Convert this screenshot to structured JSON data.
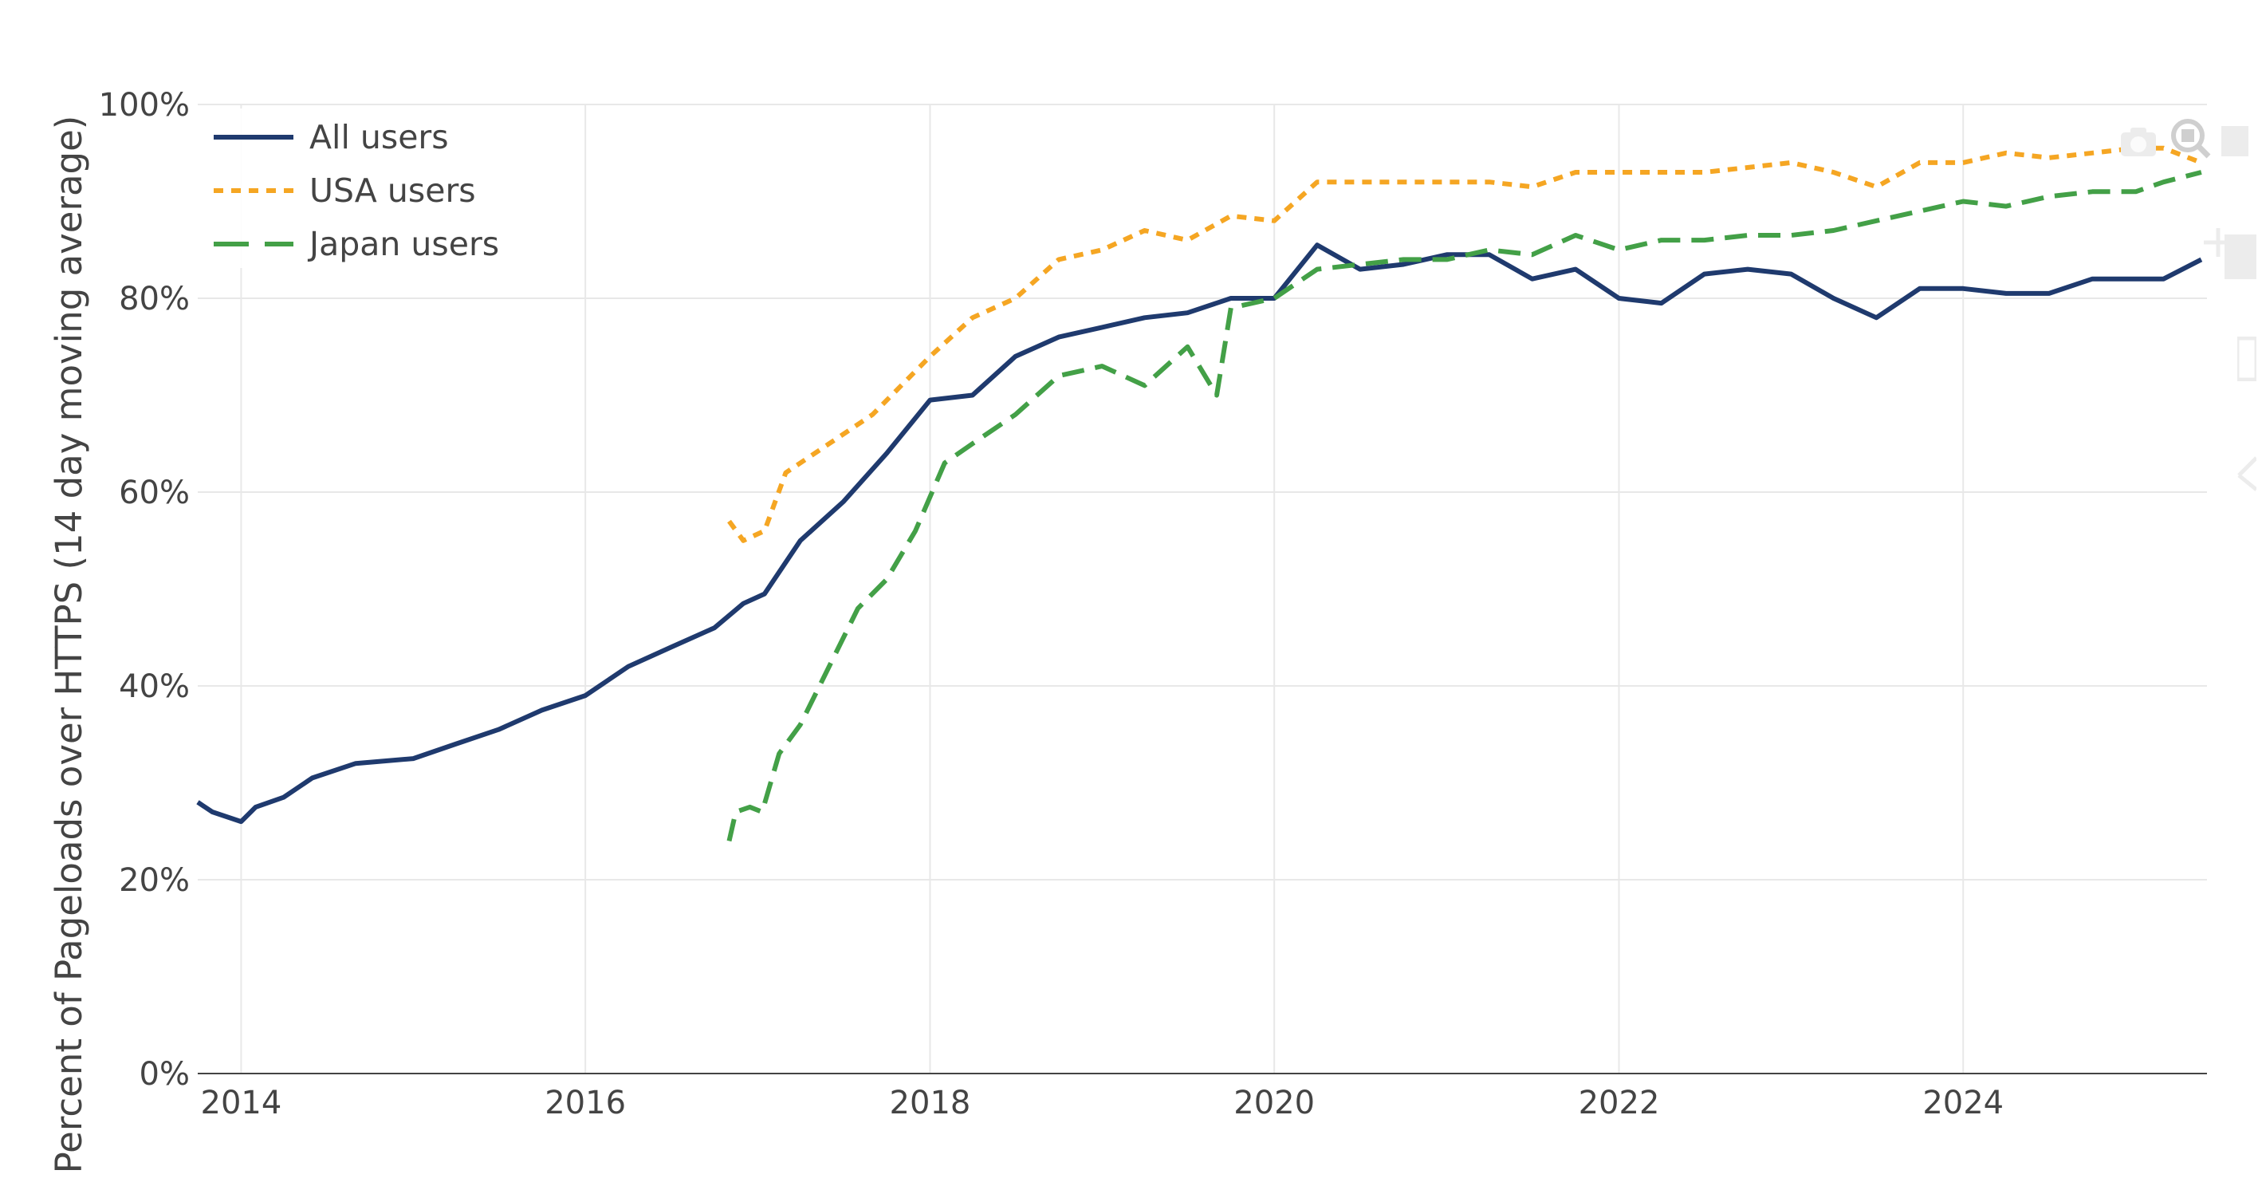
{
  "chart_data": {
    "type": "line",
    "ylabel": "Percent of Pageloads over HTTPS (14 day moving average)",
    "xlabel": "",
    "x_range": [
      "2013-10-01",
      "2025-06-01"
    ],
    "y_range": [
      0,
      100
    ],
    "x_ticks": [
      "2014",
      "2016",
      "2018",
      "2020",
      "2022",
      "2024"
    ],
    "y_ticks": [
      "0%",
      "20%",
      "40%",
      "60%",
      "80%",
      "100%"
    ],
    "grid": true,
    "legend_position": "top-left",
    "series": [
      {
        "name": "All users",
        "color": "#1f3a6e",
        "dash": "solid",
        "points": [
          [
            "2013-10-01",
            28
          ],
          [
            "2013-11-01",
            27
          ],
          [
            "2014-01-01",
            26
          ],
          [
            "2014-02-01",
            27.5
          ],
          [
            "2014-04-01",
            28.5
          ],
          [
            "2014-06-01",
            30.5
          ],
          [
            "2014-09-01",
            32
          ],
          [
            "2015-01-01",
            32.5
          ],
          [
            "2015-04-01",
            34
          ],
          [
            "2015-07-01",
            35.5
          ],
          [
            "2015-10-01",
            37.5
          ],
          [
            "2016-01-01",
            39
          ],
          [
            "2016-04-01",
            42
          ],
          [
            "2016-07-01",
            44
          ],
          [
            "2016-10-01",
            46
          ],
          [
            "2016-12-01",
            48.5
          ],
          [
            "2017-01-15",
            49.5
          ],
          [
            "2017-04-01",
            55
          ],
          [
            "2017-07-01",
            59
          ],
          [
            "2017-10-01",
            64
          ],
          [
            "2018-01-01",
            69.5
          ],
          [
            "2018-04-01",
            70
          ],
          [
            "2018-07-01",
            74
          ],
          [
            "2018-10-01",
            76
          ],
          [
            "2019-01-01",
            77
          ],
          [
            "2019-04-01",
            78
          ],
          [
            "2019-07-01",
            78.5
          ],
          [
            "2019-10-01",
            80
          ],
          [
            "2020-01-01",
            80
          ],
          [
            "2020-04-01",
            85.5
          ],
          [
            "2020-07-01",
            83
          ],
          [
            "2020-10-01",
            83.5
          ],
          [
            "2021-01-01",
            84.5
          ],
          [
            "2021-04-01",
            84.5
          ],
          [
            "2021-07-01",
            82
          ],
          [
            "2021-10-01",
            83
          ],
          [
            "2022-01-01",
            80
          ],
          [
            "2022-04-01",
            79.5
          ],
          [
            "2022-07-01",
            82.5
          ],
          [
            "2022-10-01",
            83
          ],
          [
            "2023-01-01",
            82.5
          ],
          [
            "2023-04-01",
            80
          ],
          [
            "2023-07-01",
            78
          ],
          [
            "2023-10-01",
            81
          ],
          [
            "2024-01-01",
            81
          ],
          [
            "2024-04-01",
            80.5
          ],
          [
            "2024-07-01",
            80.5
          ],
          [
            "2024-10-01",
            82
          ],
          [
            "2025-01-01",
            82
          ],
          [
            "2025-03-01",
            82
          ],
          [
            "2025-05-20",
            84
          ]
        ]
      },
      {
        "name": "USA users",
        "color": "#f5a623",
        "dash": "dot",
        "points": [
          [
            "2016-11-01",
            57
          ],
          [
            "2016-12-01",
            55
          ],
          [
            "2017-01-15",
            56
          ],
          [
            "2017-03-01",
            62
          ],
          [
            "2017-06-01",
            65
          ],
          [
            "2017-09-01",
            68
          ],
          [
            "2018-01-01",
            74
          ],
          [
            "2018-04-01",
            78
          ],
          [
            "2018-07-01",
            80
          ],
          [
            "2018-10-01",
            84
          ],
          [
            "2019-01-01",
            85
          ],
          [
            "2019-04-01",
            87
          ],
          [
            "2019-07-01",
            86
          ],
          [
            "2019-10-01",
            88.5
          ],
          [
            "2020-01-01",
            88
          ],
          [
            "2020-04-01",
            92
          ],
          [
            "2020-07-01",
            92
          ],
          [
            "2020-10-01",
            92
          ],
          [
            "2021-01-01",
            92
          ],
          [
            "2021-04-01",
            92
          ],
          [
            "2021-07-01",
            91.5
          ],
          [
            "2021-10-01",
            93
          ],
          [
            "2022-01-01",
            93
          ],
          [
            "2022-04-01",
            93
          ],
          [
            "2022-07-01",
            93
          ],
          [
            "2022-10-01",
            93.5
          ],
          [
            "2023-01-01",
            94
          ],
          [
            "2023-04-01",
            93
          ],
          [
            "2023-07-01",
            91.5
          ],
          [
            "2023-10-01",
            94
          ],
          [
            "2024-01-01",
            94
          ],
          [
            "2024-04-01",
            95
          ],
          [
            "2024-07-01",
            94.5
          ],
          [
            "2024-10-01",
            95
          ],
          [
            "2025-01-01",
            95.5
          ],
          [
            "2025-03-01",
            95.5
          ],
          [
            "2025-05-20",
            94
          ]
        ]
      },
      {
        "name": "Japan users",
        "color": "#43a047",
        "dash": "dash",
        "points": [
          [
            "2016-11-01",
            24
          ],
          [
            "2016-11-15",
            27
          ],
          [
            "2016-12-15",
            27.5
          ],
          [
            "2017-01-10",
            27
          ],
          [
            "2017-02-15",
            33
          ],
          [
            "2017-04-01",
            36
          ],
          [
            "2017-06-01",
            42
          ],
          [
            "2017-08-01",
            48
          ],
          [
            "2017-10-01",
            51
          ],
          [
            "2017-12-01",
            56
          ],
          [
            "2018-02-01",
            63
          ],
          [
            "2018-04-01",
            65
          ],
          [
            "2018-07-01",
            68
          ],
          [
            "2018-10-01",
            72
          ],
          [
            "2019-01-01",
            73
          ],
          [
            "2019-04-01",
            71
          ],
          [
            "2019-07-01",
            75
          ],
          [
            "2019-09-01",
            70
          ],
          [
            "2019-10-01",
            79
          ],
          [
            "2020-01-01",
            80
          ],
          [
            "2020-04-01",
            83
          ],
          [
            "2020-07-01",
            83.5
          ],
          [
            "2020-10-01",
            84
          ],
          [
            "2021-01-01",
            84
          ],
          [
            "2021-04-01",
            85
          ],
          [
            "2021-07-01",
            84.5
          ],
          [
            "2021-10-01",
            86.5
          ],
          [
            "2022-01-01",
            85
          ],
          [
            "2022-04-01",
            86
          ],
          [
            "2022-07-01",
            86
          ],
          [
            "2022-10-01",
            86.5
          ],
          [
            "2023-01-01",
            86.5
          ],
          [
            "2023-04-01",
            87
          ],
          [
            "2023-07-01",
            88
          ],
          [
            "2023-10-01",
            89
          ],
          [
            "2024-01-01",
            90
          ],
          [
            "2024-04-01",
            89.5
          ],
          [
            "2024-07-01",
            90.5
          ],
          [
            "2024-10-01",
            91
          ],
          [
            "2025-01-01",
            91
          ],
          [
            "2025-03-01",
            92
          ],
          [
            "2025-05-20",
            93
          ]
        ]
      }
    ]
  },
  "modebar": {
    "buttons": [
      "camera-icon",
      "zoom-icon",
      "pan-icon",
      "zoom-in-icon",
      "zoom-out-icon",
      "autoscale-icon",
      "reset-axes-icon"
    ]
  }
}
